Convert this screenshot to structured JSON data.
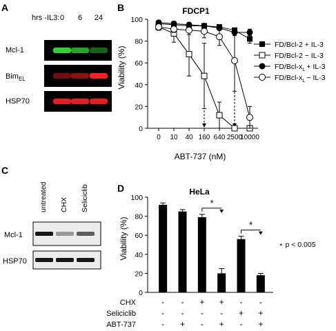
{
  "panels": {
    "A": {
      "letter": "A",
      "header": "hrs -IL3:",
      "timepoints": [
        "0",
        "6",
        "24"
      ],
      "bands": [
        {
          "label": "Mcl-1",
          "color": "#33dd33",
          "intensity": [
            0.95,
            0.75,
            0.45
          ]
        },
        {
          "label": "Bim",
          "sub": "EL",
          "color": "#ff2020",
          "intensity": [
            0.45,
            0.55,
            1.0
          ]
        },
        {
          "label": "HSP70",
          "color": "#ff2020",
          "intensity": [
            0.9,
            0.9,
            0.9
          ]
        }
      ]
    },
    "B": {
      "letter": "B",
      "legend": [
        {
          "text": "FD/Bcl-2 + IL-3"
        },
        {
          "text": "FD/Bcl-2 − IL-3"
        },
        {
          "pre": "FD/Bcl-x",
          "sub": "L",
          "post": "+ IL-3"
        },
        {
          "pre": "FD/Bcl-x",
          "sub": "L",
          "post": "− IL-3"
        }
      ]
    },
    "C": {
      "letter": "C",
      "lanes": [
        "untreated",
        "CHX",
        "Seliciclib"
      ],
      "bands": [
        {
          "label": "Mcl-1",
          "intensity": [
            0.9,
            0.35,
            0.6
          ]
        },
        {
          "label": "HSP70",
          "intensity": [
            0.9,
            0.9,
            0.9
          ]
        }
      ]
    },
    "D": {
      "letter": "D",
      "significance_mark": "*",
      "significance_note": "⋆  p < 0.005",
      "treatment_rows": [
        {
          "label": "CHX",
          "signs": [
            "-",
            "-",
            "+",
            "+",
            "-",
            "-"
          ]
        },
        {
          "label": "Seliciclib",
          "signs": [
            "-",
            "-",
            "-",
            "-",
            "+",
            "+"
          ]
        },
        {
          "label": "ABT-737",
          "signs": [
            "-",
            "+",
            "-",
            "+",
            "-",
            "+"
          ]
        }
      ]
    }
  },
  "chart_data": [
    {
      "type": "line",
      "title": "FDCP1",
      "xlabel": "ABT-737 (nM)",
      "ylabel": "Viability (%)",
      "categories": [
        "0",
        "10",
        "40",
        "160",
        "640",
        "2500",
        "10000"
      ],
      "ylim": [
        0,
        100
      ],
      "yticks": [
        0,
        20,
        40,
        60,
        80,
        100
      ],
      "series": [
        {
          "name": "FD/Bcl-2 + IL-3",
          "marker": "filled-square",
          "values": [
            96,
            95,
            94,
            94,
            93,
            90,
            82
          ],
          "errors": [
            2,
            2,
            2,
            2,
            2,
            2,
            4
          ]
        },
        {
          "name": "FD/Bcl-2 − IL-3",
          "marker": "open-square",
          "values": [
            93,
            87,
            68,
            48,
            12,
            0,
            0
          ],
          "errors": [
            3,
            8,
            20,
            30,
            12,
            1,
            1
          ]
        },
        {
          "name": "FD/Bcl-xL + IL-3",
          "marker": "filled-circle",
          "values": [
            97,
            96,
            95,
            94,
            92,
            88,
            88
          ],
          "errors": [
            2,
            2,
            2,
            2,
            2,
            3,
            3
          ]
        },
        {
          "name": "FD/Bcl-xL − IL-3",
          "marker": "open-circle",
          "values": [
            93,
            91,
            90,
            89,
            84,
            62,
            10
          ],
          "errors": [
            3,
            3,
            4,
            6,
            8,
            28,
            10
          ]
        }
      ],
      "annotations": [
        {
          "type": "dashed-arrow",
          "at": "160"
        },
        {
          "type": "dashed-arrow",
          "at": "2500"
        }
      ]
    },
    {
      "type": "bar",
      "title": "HeLa",
      "ylabel": "Viability (%)",
      "ylim": [
        0,
        100
      ],
      "yticks": [
        0,
        20,
        40,
        60,
        80,
        100
      ],
      "values": [
        92,
        85,
        79,
        20,
        56,
        18
      ],
      "errors": [
        2,
        2,
        3,
        5,
        3,
        2
      ],
      "significance": [
        {
          "between": [
            2,
            3
          ],
          "mark": "*"
        },
        {
          "between": [
            4,
            5
          ],
          "mark": "*"
        }
      ]
    }
  ]
}
